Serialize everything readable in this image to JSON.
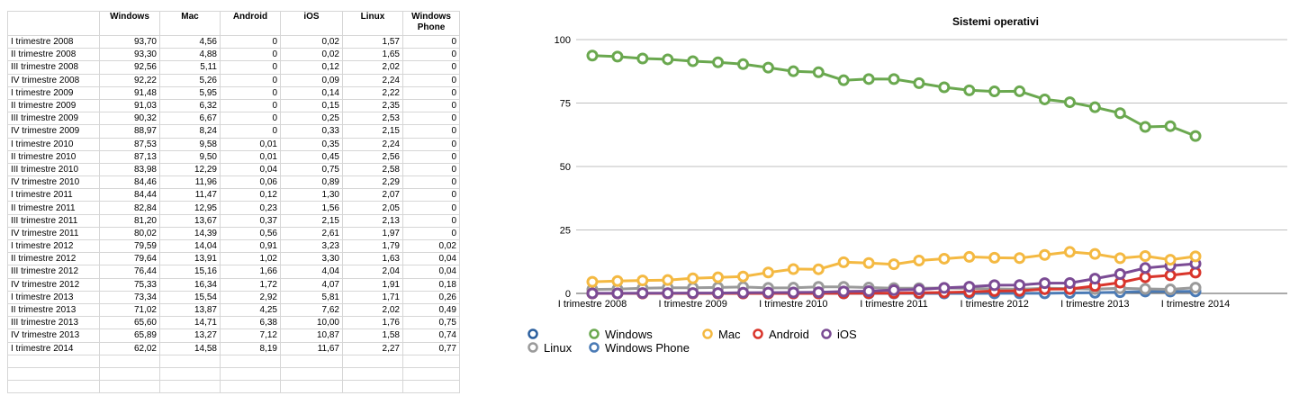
{
  "table": {
    "headers": [
      "",
      "Windows",
      "Mac",
      "Android",
      "iOS",
      "Linux",
      "Windows Phone"
    ],
    "rows": [
      [
        "I trimestre 2008",
        "93,70",
        "4,56",
        "0",
        "0,02",
        "1,57",
        "0"
      ],
      [
        "II trimestre 2008",
        "93,30",
        "4,88",
        "0",
        "0,02",
        "1,65",
        "0"
      ],
      [
        "III trimestre 2008",
        "92,56",
        "5,11",
        "0",
        "0,12",
        "2,02",
        "0"
      ],
      [
        "IV trimestre 2008",
        "92,22",
        "5,26",
        "0",
        "0,09",
        "2,24",
        "0"
      ],
      [
        "I trimestre 2009",
        "91,48",
        "5,95",
        "0",
        "0,14",
        "2,22",
        "0"
      ],
      [
        "II trimestre 2009",
        "91,03",
        "6,32",
        "0",
        "0,15",
        "2,35",
        "0"
      ],
      [
        "III trimestre 2009",
        "90,32",
        "6,67",
        "0",
        "0,25",
        "2,53",
        "0"
      ],
      [
        "IV trimestre 2009",
        "88,97",
        "8,24",
        "0",
        "0,33",
        "2,15",
        "0"
      ],
      [
        "I trimestre 2010",
        "87,53",
        "9,58",
        "0,01",
        "0,35",
        "2,24",
        "0"
      ],
      [
        "II trimestre 2010",
        "87,13",
        "9,50",
        "0,01",
        "0,45",
        "2,56",
        "0"
      ],
      [
        "III trimestre 2010",
        "83,98",
        "12,29",
        "0,04",
        "0,75",
        "2,58",
        "0"
      ],
      [
        "IV trimestre 2010",
        "84,46",
        "11,96",
        "0,06",
        "0,89",
        "2,29",
        "0"
      ],
      [
        "I trimestre 2011",
        "84,44",
        "11,47",
        "0,12",
        "1,30",
        "2,07",
        "0"
      ],
      [
        "II trimestre 2011",
        "82,84",
        "12,95",
        "0,23",
        "1,56",
        "2,05",
        "0"
      ],
      [
        "III trimestre 2011",
        "81,20",
        "13,67",
        "0,37",
        "2,15",
        "2,13",
        "0"
      ],
      [
        "IV trimestre 2011",
        "80,02",
        "14,39",
        "0,56",
        "2,61",
        "1,97",
        "0"
      ],
      [
        "I trimestre 2012",
        "79,59",
        "14,04",
        "0,91",
        "3,23",
        "1,79",
        "0,02"
      ],
      [
        "II trimestre 2012",
        "79,64",
        "13,91",
        "1,02",
        "3,30",
        "1,63",
        "0,04"
      ],
      [
        "III trimestre 2012",
        "76,44",
        "15,16",
        "1,66",
        "4,04",
        "2,04",
        "0,04"
      ],
      [
        "IV trimestre 2012",
        "75,33",
        "16,34",
        "1,72",
        "4,07",
        "1,91",
        "0,18"
      ],
      [
        "I trimestre 2013",
        "73,34",
        "15,54",
        "2,92",
        "5,81",
        "1,71",
        "0,26"
      ],
      [
        "II trimestre 2013",
        "71,02",
        "13,87",
        "4,25",
        "7,62",
        "2,02",
        "0,49"
      ],
      [
        "III trimestre 2013",
        "65,60",
        "14,71",
        "6,38",
        "10,00",
        "1,76",
        "0,75"
      ],
      [
        "IV trimestre 2013",
        "65,89",
        "13,27",
        "7,12",
        "10,87",
        "1,58",
        "0,74"
      ],
      [
        "I trimestre 2014",
        "62,02",
        "14,58",
        "8,19",
        "11,67",
        "2,27",
        "0,77"
      ]
    ],
    "empty_rows": 3
  },
  "chart_data": {
    "type": "line",
    "title": "Sistemi operativi",
    "xlabel": "",
    "ylabel": "",
    "ylim": [
      0,
      100
    ],
    "yticks": [
      0,
      25,
      50,
      75,
      100
    ],
    "xtick_labels": [
      "I trimestre 2008",
      "I trimestre 2009",
      "I trimestre 2010",
      "I trimestre 2011",
      "I trimestre 2012",
      "I trimestre 2013",
      "I trimestre 2014"
    ],
    "xtick_indices": [
      0,
      4,
      8,
      12,
      16,
      20,
      24
    ],
    "grid": true,
    "legend_position": "bottom-left",
    "legend": [
      {
        "name": "",
        "color": "#2b5f9e"
      },
      {
        "name": "Windows",
        "color": "#6aa84f"
      },
      {
        "name": "Mac",
        "color": "#f4b942"
      },
      {
        "name": "Android",
        "color": "#d9352b"
      },
      {
        "name": "iOS",
        "color": "#7b4b94"
      },
      {
        "name": "Linux",
        "color": "#9a9a9a"
      },
      {
        "name": "Windows Phone",
        "color": "#4a7ab5"
      }
    ],
    "series": [
      {
        "name": "Windows",
        "color": "#6aa84f",
        "values": [
          93.7,
          93.3,
          92.56,
          92.22,
          91.48,
          91.03,
          90.32,
          88.97,
          87.53,
          87.13,
          83.98,
          84.46,
          84.44,
          82.84,
          81.2,
          80.02,
          79.59,
          79.64,
          76.44,
          75.33,
          73.34,
          71.02,
          65.6,
          65.89,
          62.02
        ]
      },
      {
        "name": "Mac",
        "color": "#f4b942",
        "values": [
          4.56,
          4.88,
          5.11,
          5.26,
          5.95,
          6.32,
          6.67,
          8.24,
          9.58,
          9.5,
          12.29,
          11.96,
          11.47,
          12.95,
          13.67,
          14.39,
          14.04,
          13.91,
          15.16,
          16.34,
          15.54,
          13.87,
          14.71,
          13.27,
          14.58
        ]
      },
      {
        "name": "Android",
        "color": "#d9352b",
        "values": [
          0,
          0,
          0,
          0,
          0,
          0,
          0,
          0,
          0.01,
          0.01,
          0.04,
          0.06,
          0.12,
          0.23,
          0.37,
          0.56,
          0.91,
          1.02,
          1.66,
          1.72,
          2.92,
          4.25,
          6.38,
          7.12,
          8.19
        ]
      },
      {
        "name": "iOS",
        "color": "#7b4b94",
        "values": [
          0.02,
          0.02,
          0.12,
          0.09,
          0.14,
          0.15,
          0.25,
          0.33,
          0.35,
          0.45,
          0.75,
          0.89,
          1.3,
          1.56,
          2.15,
          2.61,
          3.23,
          3.3,
          4.04,
          4.07,
          5.81,
          7.62,
          10.0,
          10.87,
          11.67
        ]
      },
      {
        "name": "Linux",
        "color": "#9a9a9a",
        "values": [
          1.57,
          1.65,
          2.02,
          2.24,
          2.22,
          2.35,
          2.53,
          2.15,
          2.24,
          2.56,
          2.58,
          2.29,
          2.07,
          2.05,
          2.13,
          1.97,
          1.79,
          1.63,
          2.04,
          1.91,
          1.71,
          2.02,
          1.76,
          1.58,
          2.27
        ]
      },
      {
        "name": "Windows Phone",
        "color": "#4a7ab5",
        "values": [
          0,
          0,
          0,
          0,
          0,
          0,
          0,
          0,
          0,
          0,
          0,
          0,
          0,
          0,
          0,
          0,
          0.02,
          0.04,
          0.04,
          0.18,
          0.26,
          0.49,
          0.75,
          0.74,
          0.77
        ]
      }
    ]
  }
}
